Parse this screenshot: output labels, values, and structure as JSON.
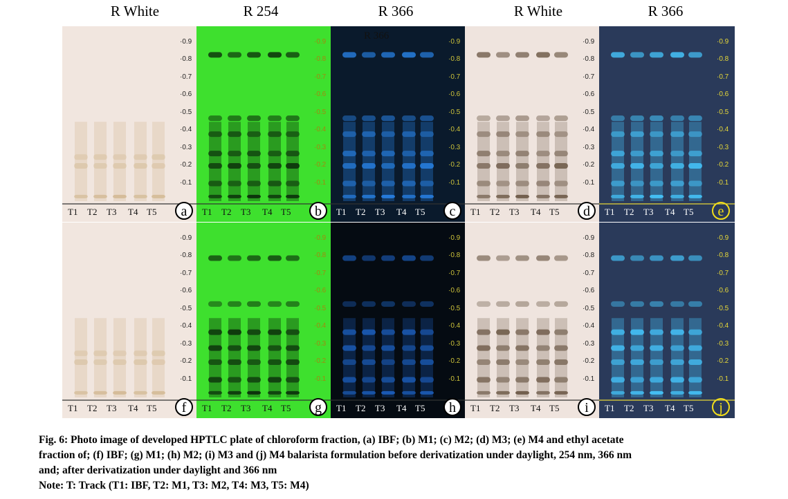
{
  "headers": [
    "R White",
    "R 254",
    "R 366",
    "R White",
    "R 366"
  ],
  "rf_ticks": [
    "0.9",
    "0.8",
    "0.7",
    "0.6",
    "0.5",
    "0.4",
    "0.3",
    "0.2",
    "0.1"
  ],
  "track_labels": [
    "T1",
    "T2",
    "T3",
    "T4",
    "T5"
  ],
  "inner_label": "R 366",
  "panels": [
    {
      "id": "a",
      "row": 0,
      "col": 0,
      "theme": "white",
      "bands": "faint"
    },
    {
      "id": "b",
      "row": 0,
      "col": 1,
      "theme": "green",
      "bands": "chloro"
    },
    {
      "id": "c",
      "row": 0,
      "col": 2,
      "theme": "uv",
      "bands": "chloro"
    },
    {
      "id": "d",
      "row": 0,
      "col": 3,
      "theme": "white2",
      "bands": "chloro"
    },
    {
      "id": "e",
      "row": 0,
      "col": 4,
      "theme": "uv2",
      "bands": "chloro"
    },
    {
      "id": "f",
      "row": 1,
      "col": 0,
      "theme": "white",
      "bands": "faint"
    },
    {
      "id": "g",
      "row": 1,
      "col": 1,
      "theme": "green",
      "bands": "ethyl"
    },
    {
      "id": "h",
      "row": 1,
      "col": 2,
      "theme": "dark",
      "bands": "ethyl"
    },
    {
      "id": "i",
      "row": 1,
      "col": 3,
      "theme": "white2",
      "bands": "ethyl"
    },
    {
      "id": "j",
      "row": 1,
      "col": 4,
      "theme": "uv2",
      "bands": "ethyl"
    }
  ],
  "caption": {
    "line1": "Fig. 6: Photo image of developed HPTLC plate of chloroform fraction, (a) IBF; (b) M1; (c) M2; (d) M3; (e) M4 and ethyl acetate",
    "line2": "fraction of; (f) IBF; (g) M1; (h) M2; (i) M3 and (j) M4 balarista formulation before derivatization under daylight, 254 nm, 366 nm",
    "line3": "and; after derivatization under daylight and 366 nm",
    "note": "Note: T: Track (T1: IBF, T2: M1, T3: M2, T4: M3, T5: M4)"
  }
}
